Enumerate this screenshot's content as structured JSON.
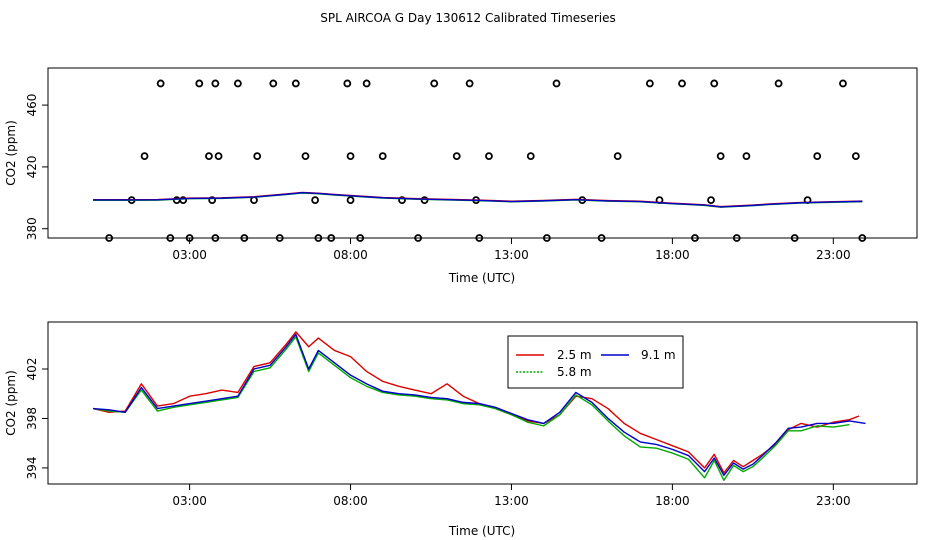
{
  "title": "SPL AIRCOA G  Day 130612  Calibrated Timeseries",
  "chart_data": [
    {
      "type": "line",
      "panel": "top",
      "xlabel": "Time (UTC)",
      "ylabel": "CO2 (ppm)",
      "xlim": [
        -1.4,
        25.6
      ],
      "ylim": [
        374,
        484
      ],
      "x_ticks": [
        3,
        8,
        13,
        18,
        23
      ],
      "x_tick_labels": [
        "03:00",
        "08:00",
        "13:00",
        "18:00",
        "23:00"
      ],
      "y_ticks": [
        380,
        420,
        460
      ],
      "y_tick_labels": [
        "380",
        "420",
        "460"
      ],
      "grid": false,
      "legend": "none",
      "colors": {
        "line_25": "#dd0000",
        "line_58": "#00aa00",
        "line_91": "#0000cc",
        "markers": "#000000"
      },
      "series": [
        {
          "x": [
            0,
            1,
            2,
            3,
            4,
            5,
            6,
            6.5,
            7,
            7.5,
            8,
            9,
            10,
            11,
            12,
            13,
            14,
            15,
            16,
            17,
            18,
            18.5,
            19,
            19.5,
            20,
            20.5,
            21,
            22,
            23,
            23.9
          ],
          "values": [
            398.8,
            398.8,
            398.9,
            399.8,
            400.0,
            400.7,
            402.5,
            403.5,
            403.0,
            402.2,
            401.5,
            400.2,
            399.5,
            399.0,
            398.5,
            397.8,
            398.3,
            399.0,
            398.2,
            397.8,
            396.5,
            396.0,
            395.5,
            394.3,
            394.8,
            395.3,
            396.0,
            397.0,
            397.5,
            397.9
          ]
        }
      ],
      "markers": {
        "x": [
          0.5,
          1.2,
          1.6,
          2.1,
          2.4,
          2.6,
          2.8,
          3.0,
          3.3,
          3.6,
          3.7,
          3.8,
          3.8,
          3.9,
          4.5,
          4.7,
          5.0,
          5.1,
          5.6,
          5.8,
          6.3,
          6.6,
          6.9,
          7.0,
          7.4,
          7.9,
          8.0,
          8.0,
          8.3,
          8.5,
          9.0,
          9.6,
          10.1,
          10.3,
          10.6,
          11.3,
          11.7,
          11.9,
          12.0,
          12.3,
          13.6,
          14.1,
          14.4,
          15.2,
          15.8,
          16.3,
          17.3,
          17.6,
          18.3,
          18.7,
          19.2,
          19.3,
          19.5,
          20.0,
          20.3,
          21.3,
          21.8,
          22.2,
          22.5,
          23.3,
          23.7,
          23.9
        ],
        "values": [
          374,
          398.5,
          427,
          474,
          374,
          398.5,
          398.5,
          374,
          474,
          427,
          398.5,
          374,
          474,
          427,
          474,
          374,
          398.5,
          427,
          474,
          374,
          474,
          427,
          398.5,
          374,
          374,
          474,
          427,
          398.5,
          374,
          474,
          427,
          398.5,
          374,
          398.5,
          474,
          427,
          474,
          398.5,
          374,
          427,
          427,
          374,
          474,
          398.5,
          374,
          427,
          474,
          398.5,
          474,
          374,
          398.5,
          474,
          427,
          374,
          427,
          474,
          374,
          398.5,
          427,
          474,
          427,
          374
        ]
      }
    },
    {
      "type": "line",
      "panel": "bottom",
      "xlabel": "Time (UTC)",
      "ylabel": "CO2 (ppm)",
      "xlim": [
        -1.4,
        25.6
      ],
      "ylim": [
        392.7,
        405.8
      ],
      "x_ticks": [
        3,
        8,
        13,
        18,
        23
      ],
      "x_tick_labels": [
        "03:00",
        "08:00",
        "13:00",
        "18:00",
        "23:00"
      ],
      "y_ticks": [
        394,
        398,
        402
      ],
      "y_tick_labels": [
        "394",
        "398",
        "402"
      ],
      "grid": false,
      "legend": "top-center",
      "legend_labels": [
        "2.5 m",
        "9.1 m",
        "5.8 m"
      ],
      "series": [
        {
          "name": "2.5 m",
          "color": "#dd0000",
          "x": [
            0,
            0.5,
            1,
            1.5,
            2,
            2.5,
            3,
            3.5,
            4,
            4.5,
            5,
            5.5,
            6,
            6.3,
            6.7,
            7,
            7.5,
            8,
            8.5,
            9,
            9.5,
            10,
            10.5,
            11,
            11.5,
            12,
            12.5,
            13,
            13.5,
            14,
            14.5,
            15,
            15.5,
            16,
            16.5,
            17,
            17.5,
            18,
            18.5,
            19,
            19.3,
            19.6,
            19.9,
            20.2,
            20.5,
            20.8,
            21.2,
            21.6,
            22,
            22.5,
            23,
            23.5,
            23.8
          ],
          "values": [
            398.8,
            398.5,
            398.6,
            400.8,
            399.0,
            399.2,
            399.8,
            400.0,
            400.3,
            400.1,
            402.2,
            402.5,
            404.0,
            405.0,
            403.8,
            404.5,
            403.5,
            403.0,
            401.8,
            401.0,
            400.6,
            400.3,
            400.0,
            400.8,
            399.8,
            399.2,
            398.8,
            398.3,
            397.8,
            397.6,
            398.3,
            399.8,
            399.6,
            398.8,
            397.6,
            396.8,
            396.3,
            395.8,
            395.3,
            394.0,
            395.1,
            393.6,
            394.6,
            394.1,
            394.6,
            395.1,
            395.9,
            397.1,
            397.6,
            397.3,
            397.7,
            397.9,
            398.2
          ]
        },
        {
          "name": "9.1 m",
          "color": "#0000cc",
          "x": [
            0,
            0.5,
            1,
            1.5,
            2,
            2.5,
            3,
            3.5,
            4,
            4.5,
            5,
            5.5,
            6,
            6.3,
            6.7,
            7,
            7.5,
            8,
            8.5,
            9,
            9.5,
            10,
            10.5,
            11,
            11.5,
            12,
            12.5,
            13,
            13.5,
            14,
            14.5,
            15,
            15.5,
            16,
            16.5,
            17,
            17.5,
            18,
            18.5,
            19,
            19.3,
            19.6,
            19.9,
            20.2,
            20.5,
            20.8,
            21.2,
            21.6,
            22,
            22.5,
            23,
            23.5,
            24
          ],
          "values": [
            398.8,
            398.7,
            398.5,
            400.5,
            398.8,
            399.0,
            399.2,
            399.4,
            399.6,
            399.8,
            402.0,
            402.3,
            403.8,
            404.8,
            402.0,
            403.5,
            402.5,
            401.5,
            400.8,
            400.2,
            400.0,
            399.9,
            399.7,
            399.6,
            399.3,
            399.2,
            398.9,
            398.4,
            397.9,
            397.6,
            398.5,
            400.1,
            399.3,
            398.0,
            396.9,
            396.1,
            395.9,
            395.5,
            395.0,
            393.7,
            394.8,
            393.4,
            394.4,
            393.9,
            394.3,
            395.0,
            396.0,
            397.2,
            397.3,
            397.6,
            397.6,
            397.8,
            397.6
          ]
        },
        {
          "name": "5.8 m",
          "color": "#00aa00",
          "x": [
            0,
            0.5,
            1,
            1.5,
            2,
            2.5,
            3,
            3.5,
            4,
            4.5,
            5,
            5.5,
            6,
            6.3,
            6.7,
            7,
            7.5,
            8,
            8.5,
            9,
            9.5,
            10,
            10.5,
            11,
            11.5,
            12,
            12.5,
            13,
            13.5,
            14,
            14.5,
            15,
            15.5,
            16,
            16.5,
            17,
            17.5,
            18,
            18.5,
            19,
            19.3,
            19.6,
            19.9,
            20.2,
            20.5,
            20.8,
            21.2,
            21.6,
            22,
            22.5,
            23,
            23.5
          ],
          "values": [
            398.8,
            398.6,
            398.5,
            400.3,
            398.6,
            398.9,
            399.1,
            399.3,
            399.5,
            399.7,
            401.8,
            402.1,
            403.6,
            404.6,
            401.8,
            403.3,
            402.3,
            401.3,
            400.6,
            400.1,
            399.9,
            399.8,
            399.6,
            399.5,
            399.2,
            399.1,
            398.8,
            398.3,
            397.7,
            397.4,
            398.3,
            399.9,
            399.1,
            397.8,
            396.6,
            395.7,
            395.6,
            395.2,
            394.7,
            393.2,
            394.6,
            393.0,
            394.2,
            393.7,
            394.1,
            394.8,
            395.8,
            397.0,
            397.0,
            397.4,
            397.3,
            397.5
          ]
        }
      ]
    }
  ]
}
